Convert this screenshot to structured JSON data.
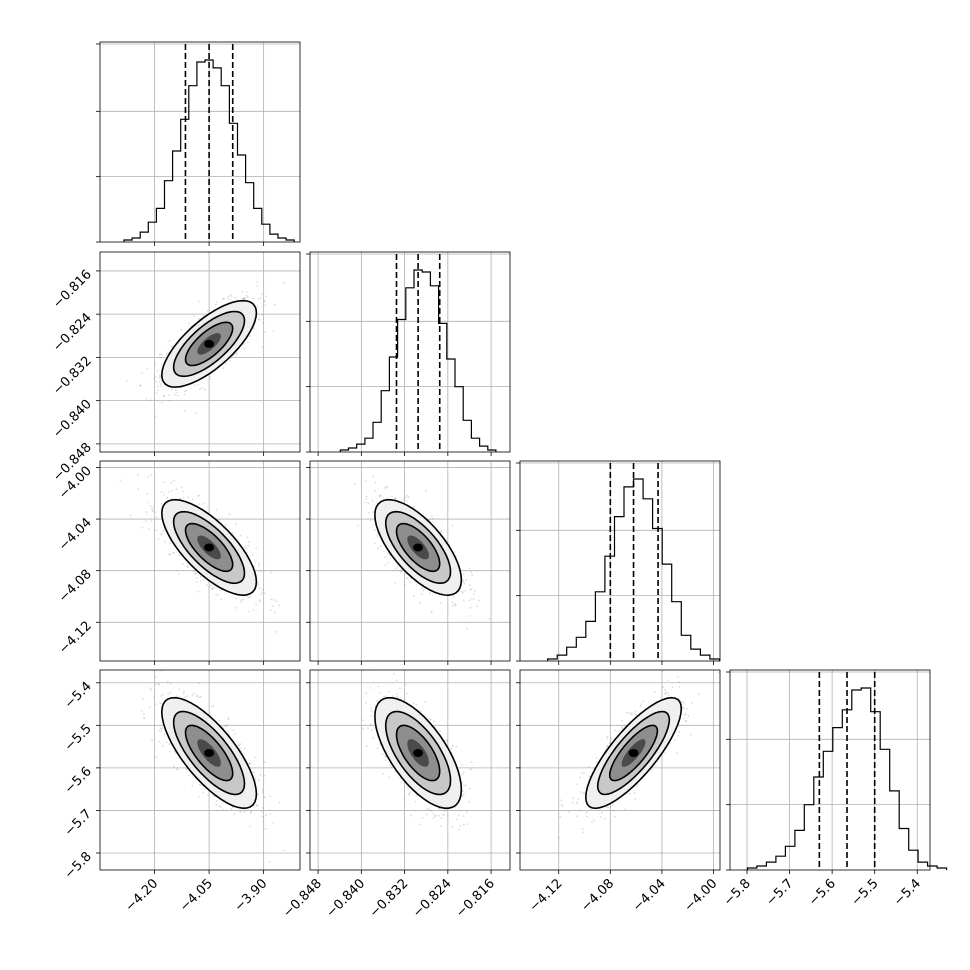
{
  "chart_data": {
    "type": "corner",
    "grid": true,
    "params": [
      {
        "center": -4.05,
        "q16": -4.115,
        "q84": -3.985,
        "xlim": [
          -4.35,
          -3.8
        ],
        "xticks": [
          "−4.20",
          "−4.05",
          "−3.90"
        ],
        "xtick_values": [
          -4.2,
          -4.05,
          -3.9
        ],
        "hist": [
          0.01,
          0.02,
          0.05,
          0.1,
          0.17,
          0.31,
          0.46,
          0.62,
          0.79,
          0.91,
          0.92,
          0.88,
          0.79,
          0.6,
          0.44,
          0.3,
          0.17,
          0.09,
          0.04,
          0.02,
          0.01
        ]
      },
      {
        "center": -0.8295,
        "q16": -0.8335,
        "q84": -0.8255,
        "xlim": [
          -0.8495,
          -0.8125
        ],
        "xticks": [
          "−0.848",
          "−0.840",
          "−0.832",
          "−0.824",
          "−0.816"
        ],
        "xtick_values": [
          -0.848,
          -0.84,
          -0.832,
          -0.824,
          -0.816
        ],
        "yticks": [
          "−0.816",
          "−0.824",
          "−0.832",
          "−0.840",
          "−0.848"
        ],
        "ytick_values": [
          -0.816,
          -0.824,
          -0.832,
          -0.84,
          -0.848
        ],
        "hist": [
          0.01,
          0.02,
          0.04,
          0.07,
          0.15,
          0.31,
          0.48,
          0.67,
          0.83,
          0.92,
          0.91,
          0.84,
          0.65,
          0.47,
          0.33,
          0.16,
          0.07,
          0.03,
          0.01
        ]
      },
      {
        "center": -4.062,
        "q16": -4.08,
        "q84": -4.043,
        "xlim": [
          -4.15,
          -3.995
        ],
        "xticks": [
          "−4.12",
          "−4.08",
          "−4.04",
          "−4.00"
        ],
        "xtick_values": [
          -4.12,
          -4.08,
          -4.04,
          -4.0
        ],
        "yticks": [
          "−4.00",
          "−4.04",
          "−4.08",
          "−4.12"
        ],
        "ytick_values": [
          -4.0,
          -4.04,
          -4.08,
          -4.12
        ],
        "hist": [
          0.01,
          0.03,
          0.07,
          0.12,
          0.2,
          0.35,
          0.53,
          0.73,
          0.88,
          0.92,
          0.82,
          0.67,
          0.49,
          0.3,
          0.13,
          0.06,
          0.03,
          0.01
        ]
      },
      {
        "center": -5.565,
        "q16": -5.63,
        "q84": -5.5,
        "xlim": [
          -5.84,
          -5.37
        ],
        "xticks": [
          "−5.8",
          "−5.7",
          "−5.6",
          "−5.5",
          "−5.4"
        ],
        "xtick_values": [
          -5.8,
          -5.7,
          -5.6,
          -5.5,
          -5.4
        ],
        "yticks": [
          "−5.4",
          "−5.5",
          "−5.6",
          "−5.7",
          "−5.8"
        ],
        "ytick_values": [
          -5.4,
          -5.5,
          -5.6,
          -5.7,
          -5.8
        ],
        "hist": [
          0.01,
          0.02,
          0.04,
          0.07,
          0.12,
          0.2,
          0.33,
          0.47,
          0.6,
          0.72,
          0.81,
          0.91,
          0.92,
          0.8,
          0.61,
          0.4,
          0.21,
          0.1,
          0.04,
          0.02,
          0.01
        ]
      }
    ],
    "correlations": [
      {
        "row": 1,
        "col": 0,
        "rho": 0.72
      },
      {
        "row": 2,
        "col": 0,
        "rho": -0.72
      },
      {
        "row": 2,
        "col": 1,
        "rho": -0.68
      },
      {
        "row": 3,
        "col": 0,
        "rho": -0.74
      },
      {
        "row": 3,
        "col": 1,
        "rho": -0.66
      },
      {
        "row": 3,
        "col": 2,
        "rho": 0.8
      }
    ],
    "contour_levels": [
      0.5,
      1.0,
      1.5,
      2.0
    ],
    "contour_fill_colors": [
      "#f0f0f0",
      "#c8c8c8",
      "#8e8e8e",
      "#4a4a4a"
    ],
    "scatter_color": "#9a9a9a"
  }
}
